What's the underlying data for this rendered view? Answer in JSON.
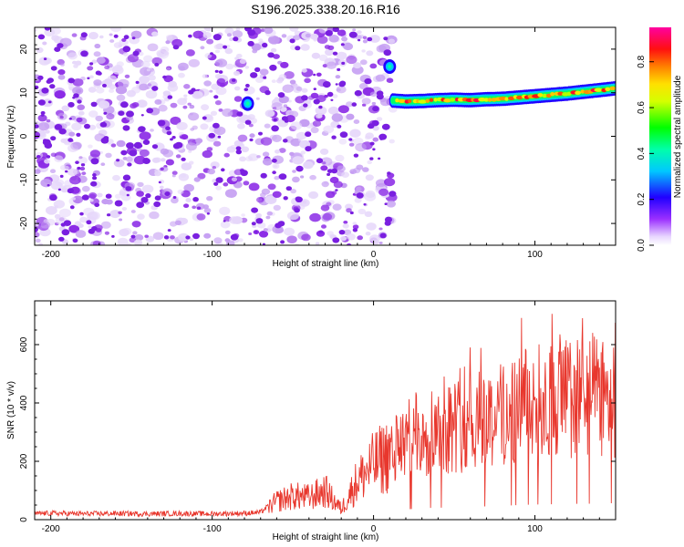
{
  "figure": {
    "title": "S196.2025.338.20.16.R16"
  },
  "chart_data": [
    {
      "type": "heatmap",
      "title": "S196.2025.338.20.16.R16",
      "xlabel": "Height of straight line (km)",
      "ylabel": "Frequency (Hz)",
      "xlim": [
        -210,
        150
      ],
      "ylim": [
        -25,
        25
      ],
      "x_ticks": [
        -200,
        -100,
        0,
        100
      ],
      "y_ticks": [
        -20,
        -10,
        0,
        10,
        20
      ],
      "colorbar": {
        "label": "Normalized spectral amplitude",
        "range": [
          0.0,
          0.95
        ],
        "ticks": [
          0.0,
          0.2,
          0.4,
          0.6,
          0.8
        ],
        "colormap": [
          "#ffffff",
          "#7a00ff",
          "#0000ff",
          "#00ffff",
          "#00ff00",
          "#ffff00",
          "#ff8000",
          "#ff0000",
          "#ff00a0"
        ]
      },
      "noise_region": {
        "x_range": [
          -210,
          12
        ],
        "amplitude_range": [
          0.0,
          0.15
        ],
        "dominant_color": "#8a2be2"
      },
      "features": [
        {
          "x": -78,
          "y": 7.5,
          "peak_amplitude": 0.25
        },
        {
          "x": 10,
          "y": 16.0,
          "peak_amplitude": 0.35
        }
      ],
      "signal_track": {
        "x": [
          12,
          20,
          30,
          40,
          50,
          60,
          70,
          80,
          90,
          100,
          110,
          120,
          130,
          140,
          150
        ],
        "frequency": [
          8.2,
          8.0,
          8.1,
          8.3,
          8.4,
          8.3,
          8.5,
          8.6,
          8.9,
          9.2,
          9.5,
          9.8,
          10.2,
          10.6,
          11.0
        ],
        "peak_amplitude": 0.9
      }
    },
    {
      "type": "line",
      "xlabel": "Height of straight line (km)",
      "ylabel": "SNR (10 * v/v)",
      "xlim": [
        -210,
        150
      ],
      "ylim": [
        0,
        750
      ],
      "x_ticks": [
        -200,
        -100,
        0,
        100
      ],
      "y_ticks": [
        0,
        200,
        400,
        600
      ],
      "series": [
        {
          "color": "#e8372d",
          "x": [
            -210,
            -200,
            -180,
            -160,
            -140,
            -120,
            -100,
            -80,
            -70,
            -60,
            -50,
            -40,
            -30,
            -20,
            -10,
            0,
            10,
            20,
            30,
            40,
            50,
            60,
            70,
            80,
            90,
            100,
            110,
            120,
            130,
            140,
            150
          ],
          "y": [
            20,
            22,
            20,
            21,
            20,
            21,
            20,
            22,
            25,
            70,
            90,
            85,
            110,
            40,
            150,
            210,
            250,
            290,
            330,
            340,
            350,
            360,
            380,
            390,
            420,
            430,
            440,
            450,
            455,
            460,
            470
          ]
        }
      ]
    }
  ]
}
